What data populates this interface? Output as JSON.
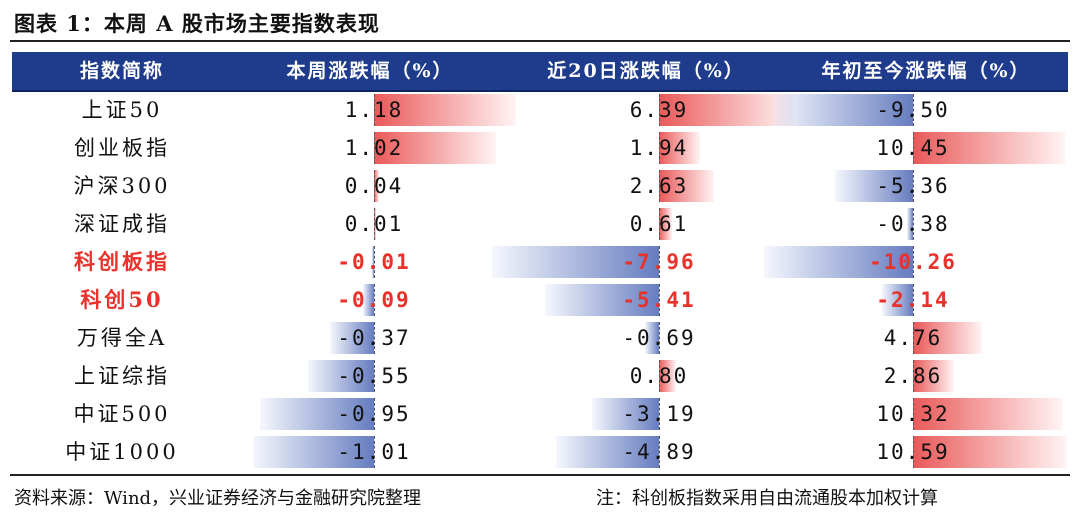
{
  "title": "图表 1：本周 A 股市场主要指数表现",
  "headers": [
    "指数简称",
    "本周涨跌幅（%）",
    "近20日涨跌幅（%）",
    "年初至今涨跌幅（%）"
  ],
  "colors": {
    "header_bg": "#1f3c8c",
    "positive": "#e63c3c",
    "negative": "#3250aa",
    "highlight_text": "#e8322b"
  },
  "rows": [
    {
      "name": "上证50",
      "highlight": false,
      "week": "1.18",
      "d20": "6.39",
      "ytd": "-9.50",
      "week_v": 1.18,
      "d20_v": 6.39,
      "ytd_v": -9.5
    },
    {
      "name": "创业板指",
      "highlight": false,
      "week": "1.02",
      "d20": "1.94",
      "ytd": "10.45",
      "week_v": 1.02,
      "d20_v": 1.94,
      "ytd_v": 10.45
    },
    {
      "name": "沪深300",
      "highlight": false,
      "week": "0.04",
      "d20": "2.63",
      "ytd": "-5.36",
      "week_v": 0.04,
      "d20_v": 2.63,
      "ytd_v": -5.36
    },
    {
      "name": "深证成指",
      "highlight": false,
      "week": "0.01",
      "d20": "0.61",
      "ytd": "-0.38",
      "week_v": 0.01,
      "d20_v": 0.61,
      "ytd_v": -0.38
    },
    {
      "name": "科创板指",
      "highlight": true,
      "week": "-0.01",
      "d20": "-7.96",
      "ytd": "-10.26",
      "week_v": -0.01,
      "d20_v": -7.96,
      "ytd_v": -10.26
    },
    {
      "name": "科创50",
      "highlight": true,
      "week": "-0.09",
      "d20": "-5.41",
      "ytd": "-2.14",
      "week_v": -0.09,
      "d20_v": -5.41,
      "ytd_v": -2.14
    },
    {
      "name": "万得全A",
      "highlight": false,
      "week": "-0.37",
      "d20": "-0.69",
      "ytd": "4.76",
      "week_v": -0.37,
      "d20_v": -0.69,
      "ytd_v": 4.76
    },
    {
      "name": "上证综指",
      "highlight": false,
      "week": "-0.55",
      "d20": "0.80",
      "ytd": "2.86",
      "week_v": -0.55,
      "d20_v": 0.8,
      "ytd_v": 2.86
    },
    {
      "name": "中证500",
      "highlight": false,
      "week": "-0.95",
      "d20": "-3.19",
      "ytd": "10.32",
      "week_v": -0.95,
      "d20_v": -3.19,
      "ytd_v": 10.32
    },
    {
      "name": "中证1000",
      "highlight": false,
      "week": "-1.01",
      "d20": "-4.89",
      "ytd": "10.59",
      "week_v": -1.01,
      "d20_v": -4.89,
      "ytd_v": 10.59
    }
  ],
  "footer": {
    "source": "资料来源：Wind，兴业证券经济与金融研究院整理",
    "note": "注：科创板指数采用自由流通股本加权计算"
  }
}
